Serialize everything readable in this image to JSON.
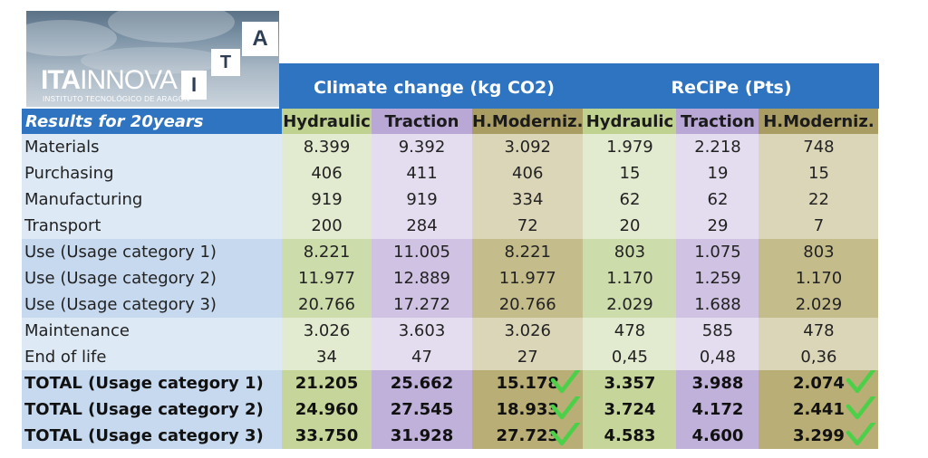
{
  "logo": {
    "main_bold": "ITA",
    "main_light": "INNOVA",
    "subtitle": "INSTITUTO TECNOLÓGICO DE ARAGÓN",
    "letters": [
      "I",
      "T",
      "A"
    ]
  },
  "groups": {
    "climate": "Climate change (kg CO2)",
    "recipe": "ReCiPe (Pts)"
  },
  "table": {
    "title": "Results for 20years",
    "columns": [
      "Hydraulic",
      "Traction",
      "H.Moderniz.",
      "Hydraulic",
      "Traction",
      "H.Moderniz."
    ],
    "rows": [
      {
        "label": "Materials",
        "group": 0,
        "values": [
          "8.399",
          "9.392",
          "3.092",
          "1.979",
          "2.218",
          "748"
        ]
      },
      {
        "label": "Purchasing",
        "group": 0,
        "values": [
          "406",
          "411",
          "406",
          "15",
          "19",
          "15"
        ]
      },
      {
        "label": "Manufacturing",
        "group": 0,
        "values": [
          "919",
          "919",
          "334",
          "62",
          "62",
          "22"
        ]
      },
      {
        "label": "Transport",
        "group": 0,
        "values": [
          "200",
          "284",
          "72",
          "20",
          "29",
          "7"
        ]
      },
      {
        "label": "Use (Usage category 1)",
        "group": 1,
        "values": [
          "8.221",
          "11.005",
          "8.221",
          "803",
          "1.075",
          "803"
        ]
      },
      {
        "label": "Use (Usage category 2)",
        "group": 1,
        "values": [
          "11.977",
          "12.889",
          "11.977",
          "1.170",
          "1.259",
          "1.170"
        ]
      },
      {
        "label": "Use (Usage category 3)",
        "group": 1,
        "values": [
          "20.766",
          "17.272",
          "20.766",
          "2.029",
          "1.688",
          "2.029"
        ]
      },
      {
        "label": "Maintenance",
        "group": 2,
        "values": [
          "3.026",
          "3.603",
          "3.026",
          "478",
          "585",
          "478"
        ]
      },
      {
        "label": "End of life",
        "group": 2,
        "values": [
          "34",
          "47",
          "27",
          "0,45",
          "0,48",
          "0,36"
        ]
      },
      {
        "label": "TOTAL (Usage category 1)",
        "group": 3,
        "values": [
          "21.205",
          "25.662",
          "15.178",
          "3.357",
          "3.988",
          "2.074"
        ],
        "checks": [
          2,
          5
        ]
      },
      {
        "label": "TOTAL (Usage category 2)",
        "group": 3,
        "values": [
          "24.960",
          "27.545",
          "18.933",
          "3.724",
          "4.172",
          "2.441"
        ],
        "checks": [
          2,
          5
        ]
      },
      {
        "label": "TOTAL (Usage category 3)",
        "group": 3,
        "values": [
          "33.750",
          "31.928",
          "27.723",
          "4.583",
          "4.600",
          "3.299"
        ],
        "checks": [
          2,
          5
        ]
      }
    ]
  },
  "colors": {
    "header_blue": "#2f74c0",
    "check_green": "#4cd04a"
  }
}
